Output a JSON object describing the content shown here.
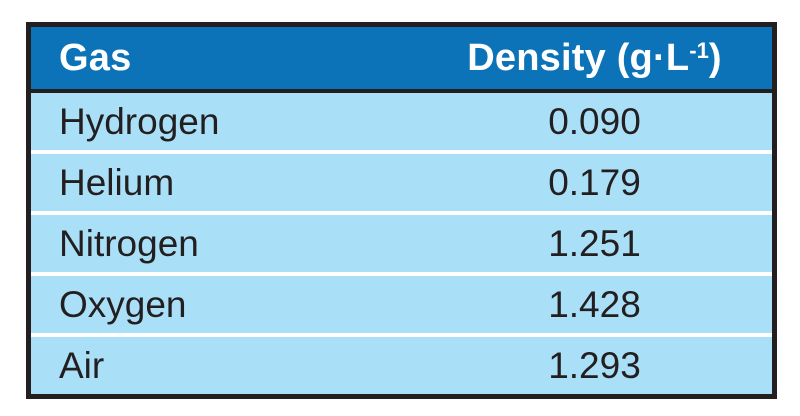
{
  "table": {
    "header": {
      "gas_label": "Gas",
      "density_prefix": "Density (g·L",
      "density_sup": "-1",
      "density_suffix": ")"
    },
    "rows": [
      {
        "gas": "Hydrogen",
        "density": "0.090"
      },
      {
        "gas": "Helium",
        "density": "0.179"
      },
      {
        "gas": "Nitrogen",
        "density": "1.251"
      },
      {
        "gas": "Oxygen",
        "density": "1.428"
      },
      {
        "gas": "Air",
        "density": "1.293"
      }
    ]
  },
  "colors": {
    "header_bg": "#0d73b9",
    "header_text": "#ffffff",
    "row_bg": "#a9dff7",
    "separator": "#ffffff",
    "border": "#231f20"
  },
  "chart_data": {
    "type": "table",
    "title": "",
    "columns": [
      "Gas",
      "Density (g·L⁻¹)"
    ],
    "rows": [
      [
        "Hydrogen",
        0.09
      ],
      [
        "Helium",
        0.179
      ],
      [
        "Nitrogen",
        1.251
      ],
      [
        "Oxygen",
        1.428
      ],
      [
        "Air",
        1.293
      ]
    ]
  }
}
